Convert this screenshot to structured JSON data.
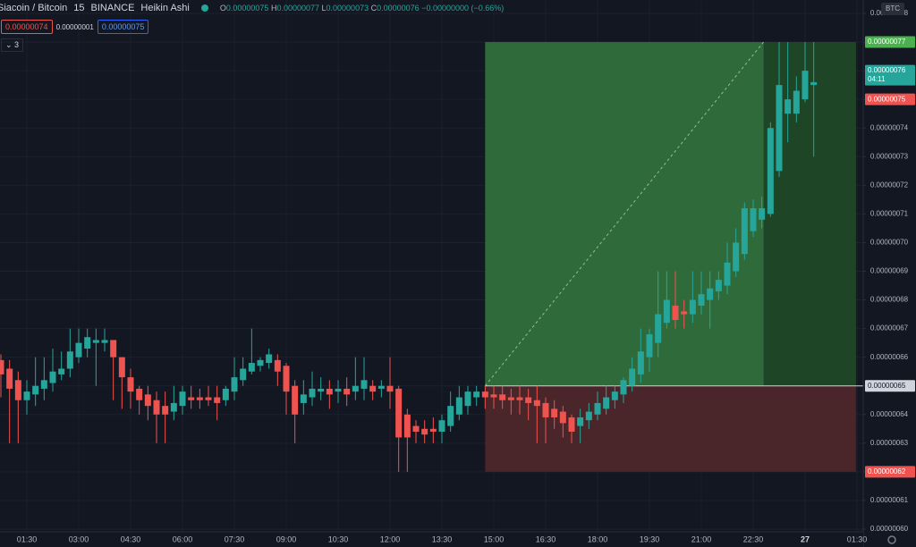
{
  "header": {
    "symbol": "Siacoin / Bitcoin",
    "interval": "15",
    "exchange": "BINANCE",
    "style": "Heikin Ashi",
    "ohlc": [
      {
        "key": "O",
        "value": "0.00000075"
      },
      {
        "key": "H",
        "value": "0.00000077"
      },
      {
        "key": "L",
        "value": "0.00000073"
      },
      {
        "key": "C",
        "value": "0.00000076"
      }
    ],
    "change": "−0.00000000 (−0.66%)",
    "bid": "0.00000074",
    "spread": "0.00000001",
    "ask": "0.00000075",
    "indicators_count": "3",
    "currency": "BTC"
  },
  "chart_data": {
    "type": "candlestick",
    "up_color": "#26a69a",
    "down_color": "#ef5350",
    "grid": true,
    "xlim": [
      0.724,
      25.681
    ],
    "ylim": [
      5.9906e-07,
      7.8468e-07
    ],
    "xticks": [
      {
        "value": 1.5,
        "label": "01:30"
      },
      {
        "value": 3,
        "label": "03:00"
      },
      {
        "value": 4.5,
        "label": "04:30"
      },
      {
        "value": 6,
        "label": "06:00"
      },
      {
        "value": 7.5,
        "label": "07:30"
      },
      {
        "value": 9,
        "label": "09:00"
      },
      {
        "value": 10.5,
        "label": "10:30"
      },
      {
        "value": 12,
        "label": "12:00"
      },
      {
        "value": 13.5,
        "label": "13:30"
      },
      {
        "value": 15,
        "label": "15:00"
      },
      {
        "value": 16.5,
        "label": "16:30"
      },
      {
        "value": 18,
        "label": "18:00"
      },
      {
        "value": 19.5,
        "label": "19:30"
      },
      {
        "value": 21,
        "label": "21:00"
      },
      {
        "value": 22.5,
        "label": "22:30"
      },
      {
        "value": 24,
        "label": "27"
      },
      {
        "value": 25.5,
        "label": "01:30"
      }
    ],
    "yticks": [
      {
        "value": 6e-07,
        "label": "0.00000060"
      },
      {
        "value": 6.1e-07,
        "label": "0.00000061"
      },
      {
        "value": 6.2e-07,
        "label": "0.00000062"
      },
      {
        "value": 6.3e-07,
        "label": "0.00000063"
      },
      {
        "value": 6.4e-07,
        "label": "0.00000064"
      },
      {
        "value": 6.5e-07,
        "label": "0.00000065"
      },
      {
        "value": 6.6e-07,
        "label": "0.00000066"
      },
      {
        "value": 6.7e-07,
        "label": "0.00000067"
      },
      {
        "value": 6.8e-07,
        "label": "0.00000068"
      },
      {
        "value": 6.9e-07,
        "label": "0.00000069"
      },
      {
        "value": 7e-07,
        "label": "0.00000070"
      },
      {
        "value": 7.1e-07,
        "label": "0.00000071"
      },
      {
        "value": 7.2e-07,
        "label": "0.00000072"
      },
      {
        "value": 7.3e-07,
        "label": "0.00000073"
      },
      {
        "value": 7.4e-07,
        "label": "0.00000074"
      },
      {
        "value": 7.5e-07,
        "label": "0.00000075"
      },
      {
        "value": 7.6e-07,
        "label": "0.00000076"
      },
      {
        "value": 7.7e-07,
        "label": "0.00000077"
      },
      {
        "value": 7.8e-07,
        "label": "0.00000078"
      }
    ],
    "candles": {
      "x": [
        0.75,
        1,
        1.25,
        1.5,
        1.75,
        2,
        2.25,
        2.5,
        2.75,
        3,
        3.25,
        3.5,
        3.75,
        4,
        4.25,
        4.5,
        4.75,
        5,
        5.25,
        5.5,
        5.75,
        6,
        6.25,
        6.5,
        6.75,
        7,
        7.25,
        7.5,
        7.75,
        8,
        8.25,
        8.5,
        8.75,
        9,
        9.25,
        9.5,
        9.75,
        10,
        10.25,
        10.5,
        10.75,
        11,
        11.25,
        11.5,
        11.75,
        12,
        12.25,
        12.5,
        12.75,
        13,
        13.25,
        13.5,
        13.75,
        14,
        14.25,
        14.5,
        14.75,
        15,
        15.25,
        15.5,
        15.75,
        16,
        16.25,
        16.5,
        16.75,
        17,
        17.25,
        17.5,
        17.75,
        18,
        18.25,
        18.5,
        18.75,
        19,
        19.25,
        19.5,
        19.75,
        20,
        20.25,
        20.5,
        20.75,
        21,
        21.25,
        21.5,
        21.75,
        22,
        22.25,
        22.5,
        22.75,
        23,
        23.25,
        23.5,
        23.75,
        24,
        24.25
      ],
      "open": [
        6.59e-07,
        6.56e-07,
        6.52e-07,
        6.45e-07,
        6.47e-07,
        6.49e-07,
        6.51e-07,
        6.54e-07,
        6.56e-07,
        6.6e-07,
        6.63e-07,
        6.65e-07,
        6.65e-07,
        6.66e-07,
        6.6e-07,
        6.53e-07,
        6.49e-07,
        6.47e-07,
        6.45e-07,
        6.43e-07,
        6.41e-07,
        6.43e-07,
        6.46e-07,
        6.46e-07,
        6.46e-07,
        6.46e-07,
        6.45e-07,
        6.48e-07,
        6.52e-07,
        6.55e-07,
        6.57e-07,
        6.58e-07,
        6.59e-07,
        6.57e-07,
        6.5e-07,
        6.44e-07,
        6.46e-07,
        6.48e-07,
        6.49e-07,
        6.48e-07,
        6.49e-07,
        6.48e-07,
        6.49e-07,
        6.5e-07,
        6.49e-07,
        6.5e-07,
        6.49e-07,
        6.4e-07,
        6.36e-07,
        6.35e-07,
        6.35e-07,
        6.34e-07,
        6.36e-07,
        6.4e-07,
        6.43e-07,
        6.46e-07,
        6.48e-07,
        6.47e-07,
        6.47e-07,
        6.46e-07,
        6.46e-07,
        6.46e-07,
        6.45e-07,
        6.44e-07,
        6.42e-07,
        6.41e-07,
        6.39e-07,
        6.36e-07,
        6.38e-07,
        6.4e-07,
        6.42e-07,
        6.45e-07,
        6.47e-07,
        6.5e-07,
        6.54e-07,
        6.6e-07,
        6.65e-07,
        6.72e-07,
        6.78e-07,
        6.76e-07,
        6.75e-07,
        6.78e-07,
        6.8e-07,
        6.83e-07,
        6.85e-07,
        6.9e-07,
        6.96e-07,
        7.04e-07,
        7.08e-07,
        7.1e-07,
        7.25e-07,
        7.45e-07,
        7.45e-07,
        7.5e-07,
        7.55e-07
      ],
      "high": [
        6.61e-07,
        6.59e-07,
        6.55e-07,
        6.52e-07,
        6.6e-07,
        6.6e-07,
        6.63e-07,
        6.62e-07,
        6.7e-07,
        6.7e-07,
        6.7e-07,
        6.7e-07,
        6.7e-07,
        6.66e-07,
        6.6e-07,
        6.56e-07,
        6.5e-07,
        6.5e-07,
        6.48e-07,
        6.48e-07,
        6.5e-07,
        6.5e-07,
        6.5e-07,
        6.49e-07,
        6.5e-07,
        6.5e-07,
        6.5e-07,
        6.6e-07,
        6.6e-07,
        6.7e-07,
        6.6e-07,
        6.63e-07,
        6.61e-07,
        6.58e-07,
        6.52e-07,
        6.52e-07,
        6.55e-07,
        6.53e-07,
        6.52e-07,
        6.52e-07,
        6.53e-07,
        6.6e-07,
        6.6e-07,
        6.52e-07,
        6.52e-07,
        6.6e-07,
        6.5e-07,
        6.42e-07,
        6.38e-07,
        6.38e-07,
        6.39e-07,
        6.4e-07,
        6.48e-07,
        6.5e-07,
        6.5e-07,
        6.5e-07,
        6.5e-07,
        6.5e-07,
        6.5e-07,
        6.49e-07,
        6.5e-07,
        6.49e-07,
        6.5e-07,
        6.46e-07,
        6.45e-07,
        6.43e-07,
        6.4e-07,
        6.42e-07,
        6.44e-07,
        6.48e-07,
        6.5e-07,
        6.5e-07,
        6.53e-07,
        6.6e-07,
        6.7e-07,
        6.7e-07,
        6.9e-07,
        6.9e-07,
        6.9e-07,
        6.8e-07,
        6.9e-07,
        6.9e-07,
        6.9e-07,
        6.9e-07,
        7e-07,
        7.05e-07,
        7.14e-07,
        7.15e-07,
        7.16e-07,
        7.42e-07,
        7.7e-07,
        7.7e-07,
        7.58e-07,
        7.7e-07,
        7.7e-07
      ],
      "low": [
        6.46e-07,
        6.3e-07,
        6.3e-07,
        6.4e-07,
        6.43e-07,
        6.45e-07,
        6.48e-07,
        6.52e-07,
        6.53e-07,
        6.58e-07,
        6.6e-07,
        6.5e-07,
        6.62e-07,
        6.45e-07,
        6.42e-07,
        6.42e-07,
        6.4e-07,
        6.38e-07,
        6.3e-07,
        6.3e-07,
        6.38e-07,
        6.4e-07,
        6.42e-07,
        6.42e-07,
        6.43e-07,
        6.38e-07,
        6.43e-07,
        6.45e-07,
        6.5e-07,
        6.54e-07,
        6.55e-07,
        6.56e-07,
        6.5e-07,
        6.4e-07,
        6.3e-07,
        6.4e-07,
        6.43e-07,
        6.45e-07,
        6.42e-07,
        6.44e-07,
        6.43e-07,
        6.45e-07,
        6.45e-07,
        6.45e-07,
        6.46e-07,
        6.42e-07,
        6.2e-07,
        6.2e-07,
        6.3e-07,
        6.3e-07,
        6.3e-07,
        6.3e-07,
        6.34e-07,
        6.38e-07,
        6.4e-07,
        6.43e-07,
        6.42e-07,
        6.42e-07,
        6.42e-07,
        6.4e-07,
        6.4e-07,
        6.38e-07,
        6.3e-07,
        6.3e-07,
        6.35e-07,
        6.32e-07,
        6.3e-07,
        6.3e-07,
        6.35e-07,
        6.38e-07,
        6.4e-07,
        6.42e-07,
        6.44e-07,
        6.48e-07,
        6.51e-07,
        6.55e-07,
        6.6e-07,
        6.7e-07,
        6.7e-07,
        6.7e-07,
        6.72e-07,
        6.75e-07,
        6.7e-07,
        6.8e-07,
        6.82e-07,
        6.88e-07,
        6.94e-07,
        7.02e-07,
        7.05e-07,
        7.09e-07,
        7.23e-07,
        7.35e-07,
        7.42e-07,
        7.49e-07,
        7.3e-07
      ],
      "close": [
        6.54e-07,
        6.49e-07,
        6.45e-07,
        6.48e-07,
        6.5e-07,
        6.52e-07,
        6.55e-07,
        6.56e-07,
        6.62e-07,
        6.65e-07,
        6.67e-07,
        6.66e-07,
        6.66e-07,
        6.6e-07,
        6.53e-07,
        6.48e-07,
        6.45e-07,
        6.43e-07,
        6.4e-07,
        6.4e-07,
        6.44e-07,
        6.48e-07,
        6.45e-07,
        6.45e-07,
        6.45e-07,
        6.44e-07,
        6.49e-07,
        6.53e-07,
        6.56e-07,
        6.58e-07,
        6.59e-07,
        6.61e-07,
        6.55e-07,
        6.48e-07,
        6.4e-07,
        6.47e-07,
        6.49e-07,
        6.49e-07,
        6.47e-07,
        6.49e-07,
        6.47e-07,
        6.5e-07,
        6.52e-07,
        6.48e-07,
        6.5e-07,
        6.48e-07,
        6.32e-07,
        6.32e-07,
        6.34e-07,
        6.33e-07,
        6.34e-07,
        6.38e-07,
        6.43e-07,
        6.46e-07,
        6.48e-07,
        6.48e-07,
        6.46e-07,
        6.46e-07,
        6.45e-07,
        6.45e-07,
        6.45e-07,
        6.44e-07,
        6.43e-07,
        6.39e-07,
        6.39e-07,
        6.37e-07,
        6.34e-07,
        6.39e-07,
        6.41e-07,
        6.44e-07,
        6.46e-07,
        6.48e-07,
        6.52e-07,
        6.56e-07,
        6.62e-07,
        6.68e-07,
        6.75e-07,
        6.8e-07,
        6.73e-07,
        6.75e-07,
        6.8e-07,
        6.82e-07,
        6.84e-07,
        6.87e-07,
        6.93e-07,
        7e-07,
        7.12e-07,
        7.12e-07,
        7.12e-07,
        7.4e-07,
        7.55e-07,
        7.5e-07,
        7.53e-07,
        7.6e-07,
        7.56e-07
      ]
    },
    "position": {
      "entry": 6.5e-07,
      "target": 7.7e-07,
      "stop": 6.2e-07,
      "start": 14.75,
      "end": 25.47,
      "close_time": 22.8
    },
    "price_labels": [
      {
        "value": 7.7e-07,
        "label": "0.00000077",
        "color": "#4caf50"
      },
      {
        "value": 7.6e-07,
        "label": "0.00000076",
        "color": "#26a69a",
        "countdown": "04:11"
      },
      {
        "value": 7.5e-07,
        "label": "0.00000075",
        "color": "#ef5350"
      },
      {
        "value": 6.5e-07,
        "label": "0.00000065",
        "color": "#d1d4dc"
      },
      {
        "value": 6.2e-07,
        "label": "0.00000062",
        "color": "#ef5350"
      }
    ]
  }
}
